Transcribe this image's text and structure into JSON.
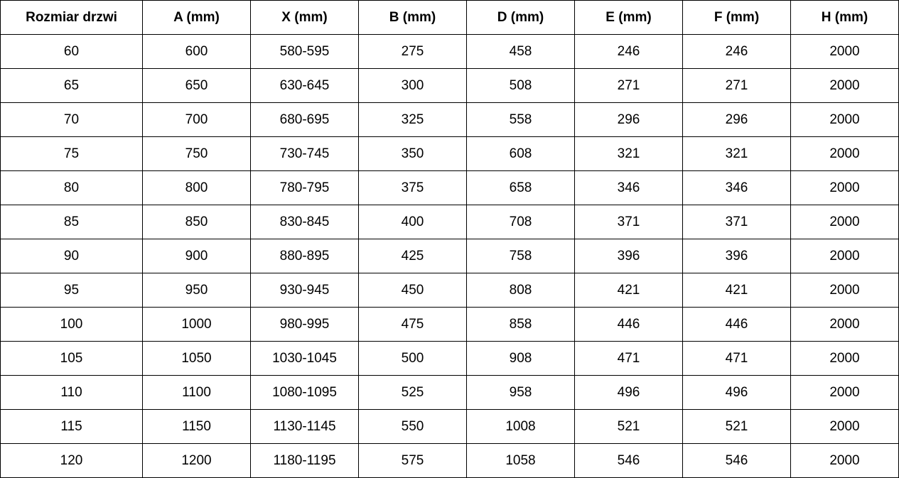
{
  "headers": [
    "Rozmiar drzwi",
    "A (mm)",
    "X (mm)",
    "B (mm)",
    "D (mm)",
    "E (mm)",
    "F (mm)",
    "H (mm)"
  ],
  "rows": [
    [
      "60",
      "600",
      "580-595",
      "275",
      "458",
      "246",
      "246",
      "2000"
    ],
    [
      "65",
      "650",
      "630-645",
      "300",
      "508",
      "271",
      "271",
      "2000"
    ],
    [
      "70",
      "700",
      "680-695",
      "325",
      "558",
      "296",
      "296",
      "2000"
    ],
    [
      "75",
      "750",
      "730-745",
      "350",
      "608",
      "321",
      "321",
      "2000"
    ],
    [
      "80",
      "800",
      "780-795",
      "375",
      "658",
      "346",
      "346",
      "2000"
    ],
    [
      "85",
      "850",
      "830-845",
      "400",
      "708",
      "371",
      "371",
      "2000"
    ],
    [
      "90",
      "900",
      "880-895",
      "425",
      "758",
      "396",
      "396",
      "2000"
    ],
    [
      "95",
      "950",
      "930-945",
      "450",
      "808",
      "421",
      "421",
      "2000"
    ],
    [
      "100",
      "1000",
      "980-995",
      "475",
      "858",
      "446",
      "446",
      "2000"
    ],
    [
      "105",
      "1050",
      "1030-1045",
      "500",
      "908",
      "471",
      "471",
      "2000"
    ],
    [
      "110",
      "1100",
      "1080-1095",
      "525",
      "958",
      "496",
      "496",
      "2000"
    ],
    [
      "115",
      "1150",
      "1130-1145",
      "550",
      "1008",
      "521",
      "521",
      "2000"
    ],
    [
      "120",
      "1200",
      "1180-1195",
      "575",
      "1058",
      "546",
      "546",
      "2000"
    ]
  ]
}
